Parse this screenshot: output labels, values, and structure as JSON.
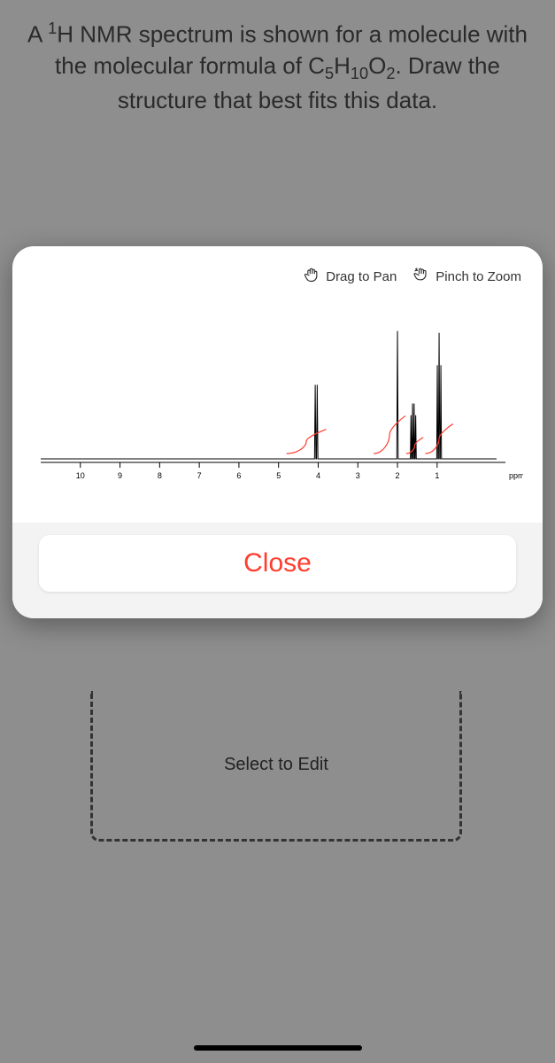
{
  "question": {
    "line1_prefix": "A ",
    "sup1": "1",
    "line1_mid": "H NMR spectrum is shown for a molecule with the molecular formula of C",
    "sub5": "5",
    "line1_h": "H",
    "sub10": "10",
    "line1_o": "O",
    "sub2": "2",
    "line1_suffix": ".  Draw the structure that best fits this data."
  },
  "edit_placeholder": "Select to Edit",
  "hints": {
    "pan": "Drag to Pan",
    "zoom": "Pinch to Zoom"
  },
  "close_label": "Close",
  "spectrum": {
    "type": "nmr-1d",
    "xlabel": "ppm",
    "xlim": [
      11,
      -0.5
    ],
    "ticks": [
      10,
      9,
      8,
      7,
      6,
      5,
      4,
      3,
      2,
      1
    ],
    "tick_fontsize": 9,
    "axis_color": "#000000",
    "baseline_color": "#000000",
    "line_width": 1,
    "integral_color": "#ff3c2e",
    "peaks": [
      {
        "ppm": 4.05,
        "height": 0.55,
        "mult": 2,
        "spacing": 0.05,
        "integral_from": 4.8,
        "integral_to": 3.8,
        "integral_rise": 0.18
      },
      {
        "ppm": 2.0,
        "height": 0.95,
        "mult": 1,
        "spacing": 0.05,
        "integral_from": 2.6,
        "integral_to": 1.8,
        "integral_rise": 0.28
      },
      {
        "ppm": 1.6,
        "height": 0.35,
        "mult": 4,
        "spacing": 0.04,
        "integral_from": 1.78,
        "integral_to": 1.35,
        "integral_rise": 0.12
      },
      {
        "ppm": 0.95,
        "height": 0.72,
        "mult": 3,
        "spacing": 0.045,
        "integral_from": 1.3,
        "integral_to": 0.6,
        "integral_rise": 0.22
      }
    ],
    "background_color": "#ffffff"
  }
}
